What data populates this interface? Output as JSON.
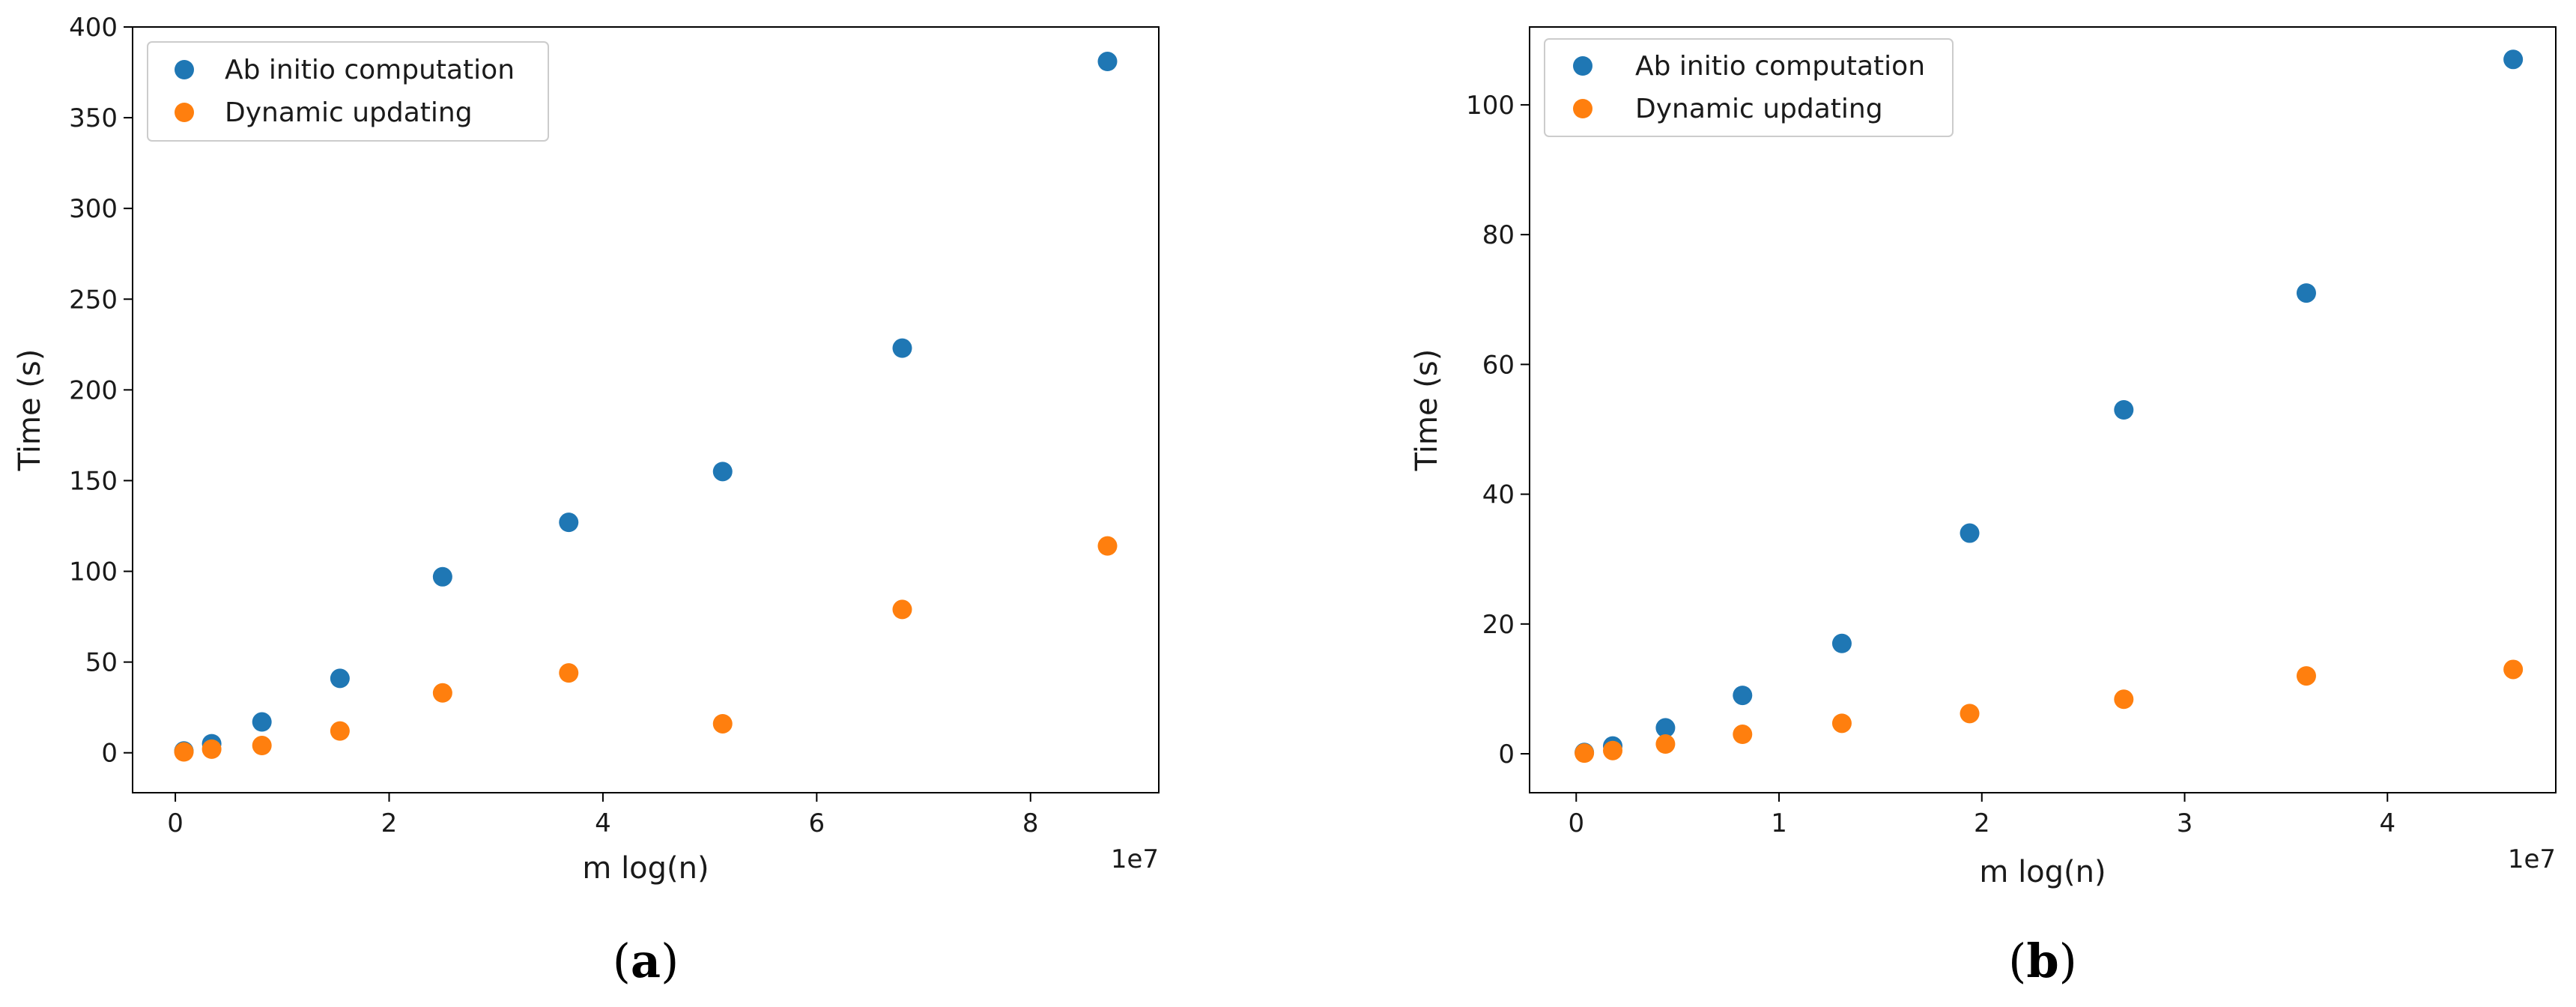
{
  "chart_data": [
    {
      "type": "scatter",
      "caption_open": "(",
      "caption_letter": "a",
      "caption_close": ")",
      "xlabel": "m log(n)",
      "ylabel": "Time (s)",
      "x_offset_label": "1e7",
      "xlim": [
        -0.4,
        9.2
      ],
      "ylim": [
        -22,
        400
      ],
      "xticks": [
        0,
        2,
        4,
        6,
        8
      ],
      "yticks": [
        0,
        50,
        100,
        150,
        200,
        250,
        300,
        350,
        400
      ],
      "grid": false,
      "legend_position": "top-left",
      "series": [
        {
          "name": "Ab initio computation",
          "color": "#1f77b4",
          "x": [
            0.08,
            0.34,
            0.81,
            1.54,
            2.5,
            3.68,
            5.12,
            6.8,
            8.72
          ],
          "y": [
            1,
            5,
            17,
            41,
            97,
            127,
            155,
            223,
            381
          ]
        },
        {
          "name": "Dynamic updating",
          "color": "#ff7f0e",
          "x": [
            0.08,
            0.34,
            0.81,
            1.54,
            2.5,
            3.68,
            5.12,
            6.8,
            8.72
          ],
          "y": [
            0.5,
            2,
            4,
            12,
            33,
            44,
            16,
            79,
            114
          ]
        }
      ]
    },
    {
      "type": "scatter",
      "caption_open": "(",
      "caption_letter": "b",
      "caption_close": ")",
      "xlabel": "m log(n)",
      "ylabel": "Time (s)",
      "x_offset_label": "1e7",
      "xlim": [
        -0.23,
        4.83
      ],
      "ylim": [
        -6,
        112
      ],
      "xticks": [
        0,
        1,
        2,
        3,
        4
      ],
      "yticks": [
        0,
        20,
        40,
        60,
        80,
        100
      ],
      "grid": false,
      "legend_position": "top-left",
      "series": [
        {
          "name": "Ab initio computation",
          "color": "#1f77b4",
          "x": [
            0.04,
            0.18,
            0.44,
            0.82,
            1.31,
            1.94,
            2.7,
            3.6,
            4.62
          ],
          "y": [
            0.2,
            1.2,
            4,
            9,
            17,
            34,
            53,
            71,
            107
          ]
        },
        {
          "name": "Dynamic updating",
          "color": "#ff7f0e",
          "x": [
            0.04,
            0.18,
            0.44,
            0.82,
            1.31,
            1.94,
            2.7,
            3.6,
            4.62
          ],
          "y": [
            0.1,
            0.5,
            1.5,
            3,
            4.7,
            6.2,
            8.4,
            12,
            13
          ]
        }
      ]
    }
  ]
}
